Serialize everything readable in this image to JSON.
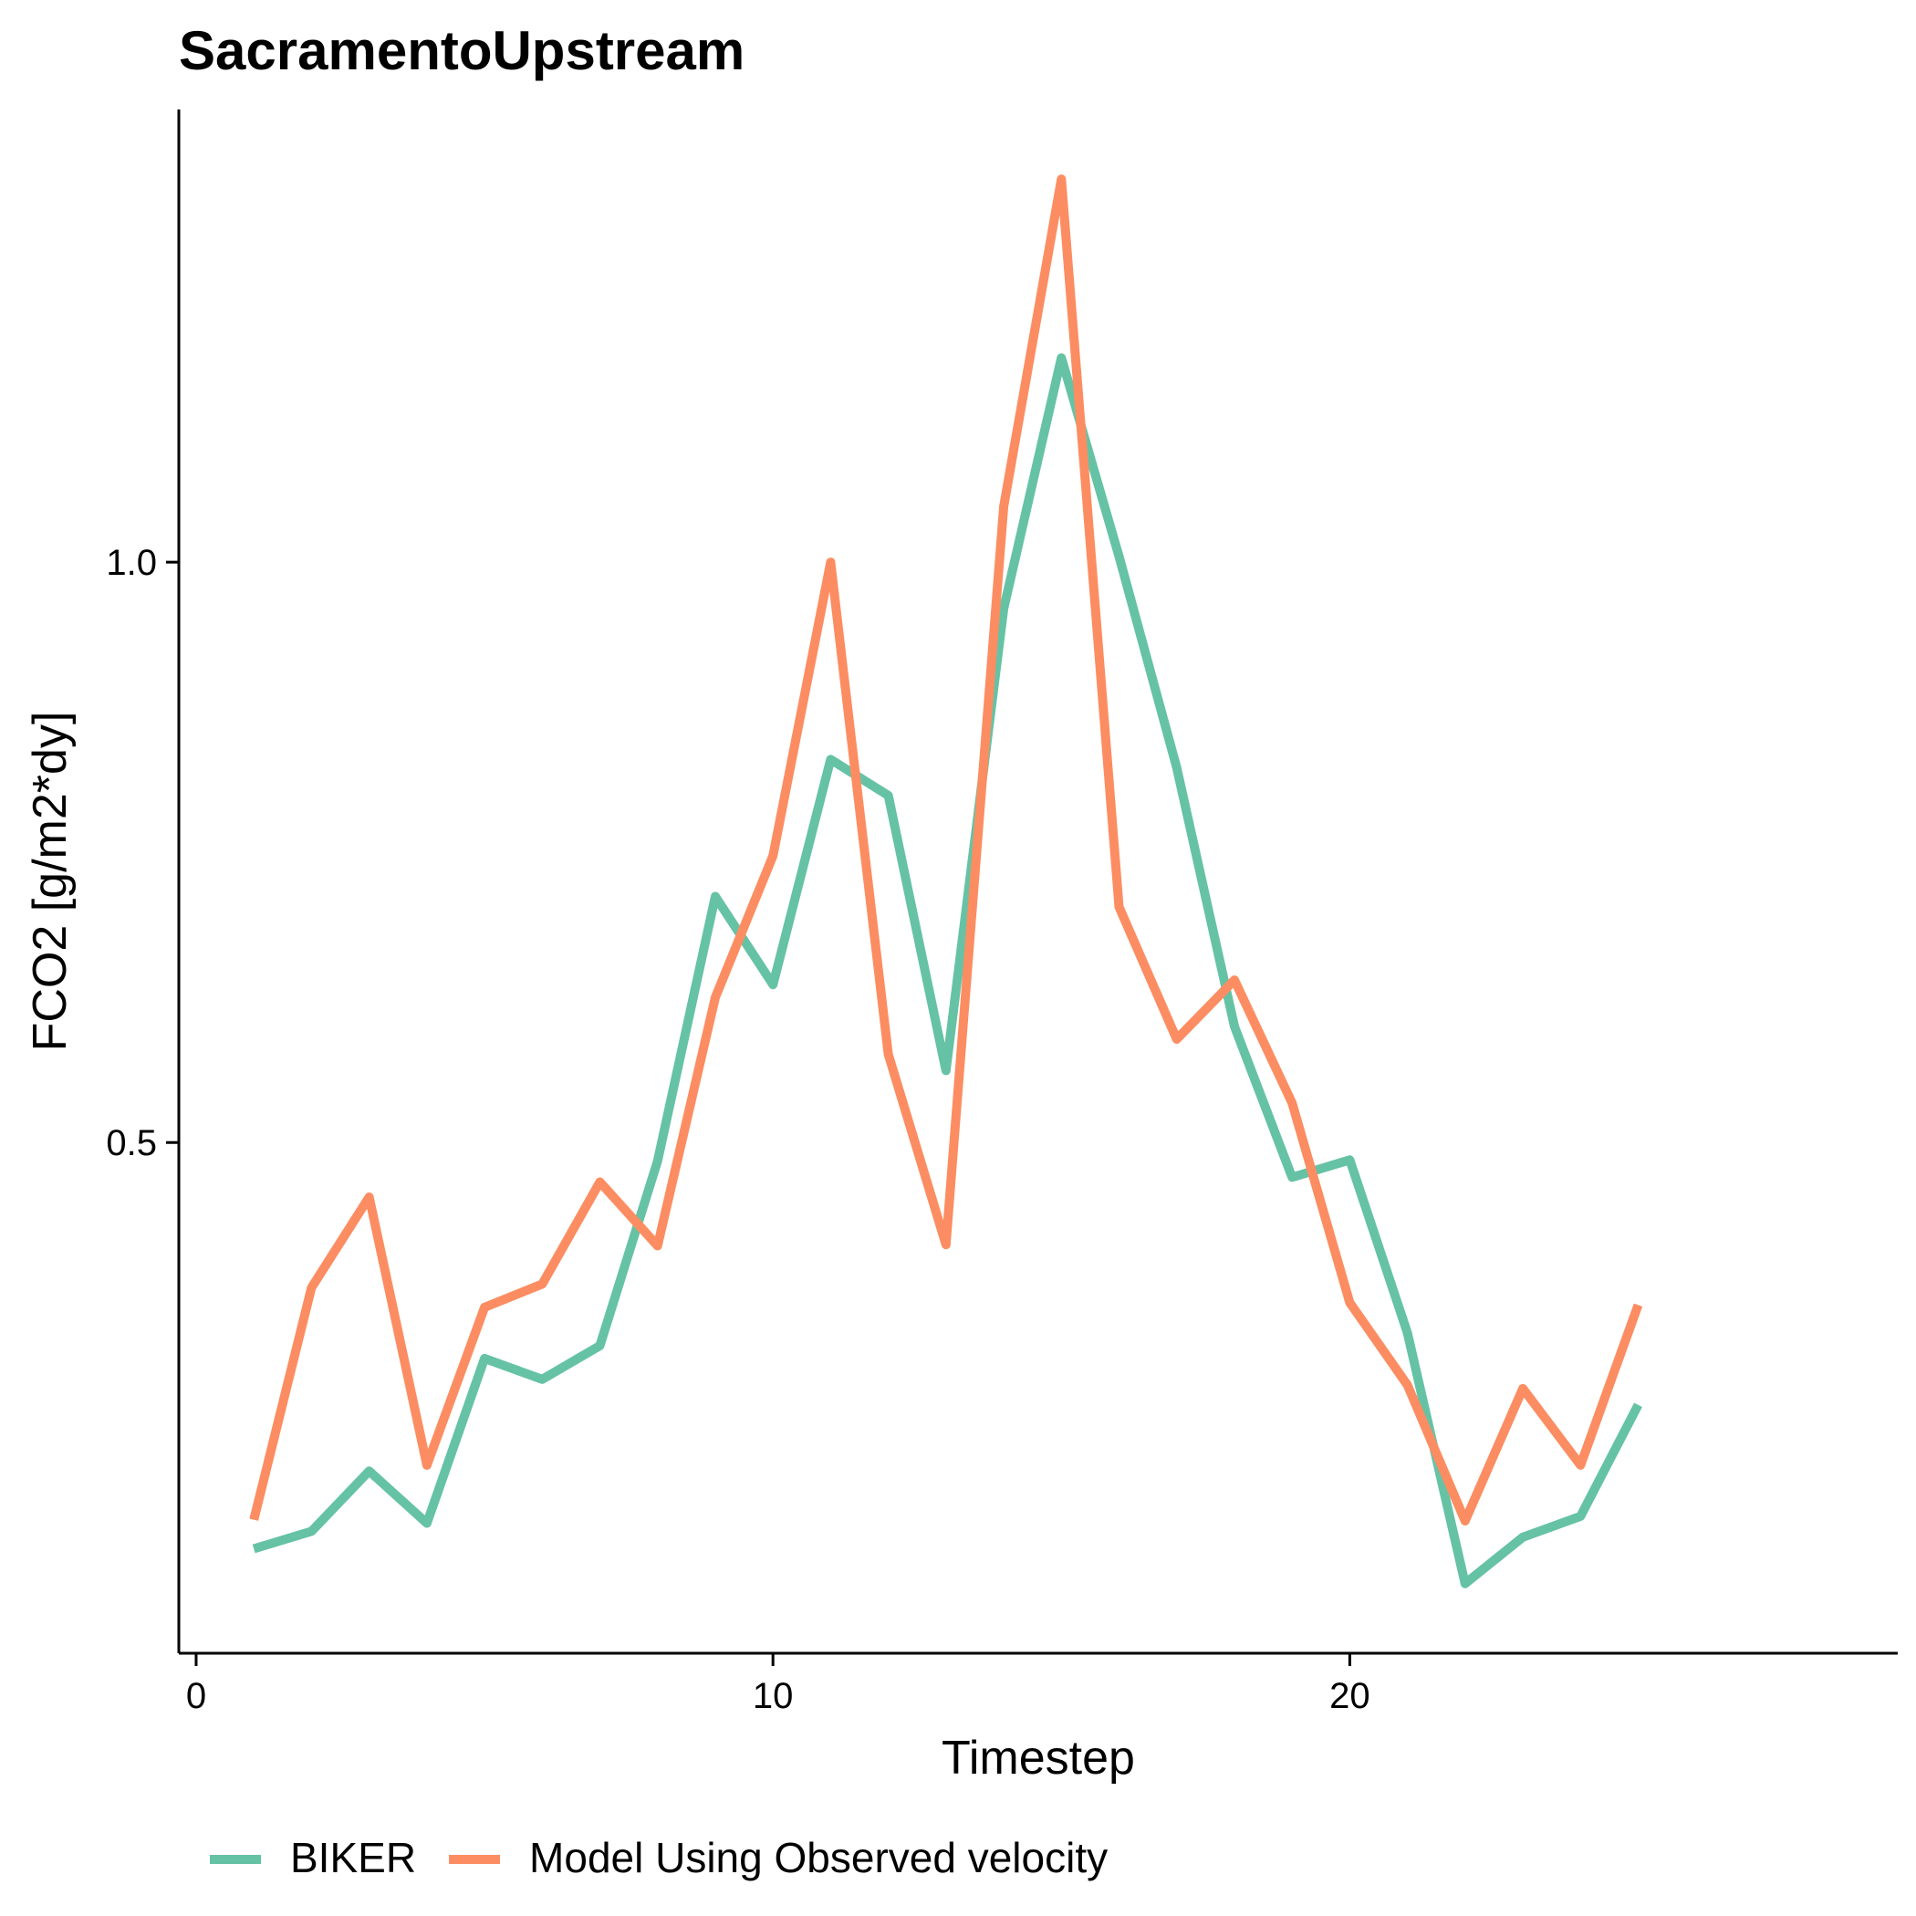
{
  "chart_data": {
    "type": "line",
    "title": "SacramentoUpstream",
    "xlabel": "Timestep",
    "ylabel": "FCO2 [g/m2*dy]",
    "xlim": [
      -0.3,
      29.5
    ],
    "ylim": [
      0.06,
      1.39
    ],
    "xticks": [
      0,
      10,
      20
    ],
    "xtick_labels": [
      "0",
      "10",
      "20"
    ],
    "yticks": [
      0.5,
      1.0
    ],
    "ytick_labels": [
      "0.5",
      "1.0"
    ],
    "grid": false,
    "legend_position": "bottom",
    "x": [
      1,
      2,
      3,
      4,
      5,
      6,
      7,
      8,
      9,
      10,
      11,
      12,
      13,
      14,
      15,
      16,
      17,
      18,
      19,
      20,
      21,
      22,
      23,
      24,
      25
    ],
    "series": [
      {
        "name": "BIKER",
        "color": "#66C2A5",
        "values": [
          0.15,
          0.165,
          0.217,
          0.172,
          0.314,
          0.296,
          0.325,
          0.484,
          0.712,
          0.636,
          0.83,
          0.799,
          0.562,
          0.96,
          1.176,
          1.005,
          0.823,
          0.6,
          0.47,
          0.485,
          0.336,
          0.12,
          0.16,
          0.178,
          0.274
        ]
      },
      {
        "name": "Model Using Observed velocity",
        "color": "#FC8D62",
        "values": [
          0.175,
          0.375,
          0.453,
          0.222,
          0.358,
          0.378,
          0.466,
          0.411,
          0.625,
          0.747,
          1.0,
          0.576,
          0.412,
          1.048,
          1.33,
          0.703,
          0.589,
          0.64,
          0.534,
          0.362,
          0.291,
          0.174,
          0.288,
          0.222,
          0.36
        ]
      }
    ]
  }
}
